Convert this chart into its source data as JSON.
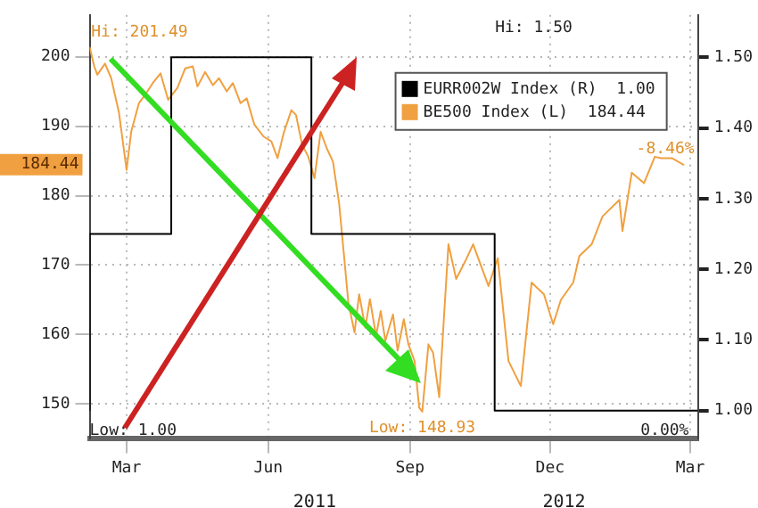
{
  "chart_data": {
    "type": "line",
    "series": [
      {
        "name": "EURR002W Index (R)  1.00",
        "color": "#000000",
        "type": "step",
        "axis": "y2",
        "x": [
          "2011-02-19",
          "2011-04-13",
          "2011-07-13",
          "2011-11-09",
          "2011-12-14",
          "2012-03-20"
        ],
        "values": [
          1.0,
          1.25,
          1.5,
          1.25,
          1.0,
          1.0
        ]
      },
      {
        "name": "BE500 Index (L)  184.44",
        "color": "#f0a040",
        "type": "line",
        "x": [
          "2011-02-19",
          "2011-02-22",
          "2011-02-24",
          "2011-03-01",
          "2011-03-05",
          "2011-03-10",
          "2011-03-15",
          "2011-03-18",
          "2011-03-23",
          "2011-03-27",
          "2011-04-01",
          "2011-04-06",
          "2011-04-11",
          "2011-04-17",
          "2011-04-22",
          "2011-04-27",
          "2011-04-30",
          "2011-05-05",
          "2011-05-10",
          "2011-05-14",
          "2011-05-19",
          "2011-05-23",
          "2011-05-28",
          "2011-06-01",
          "2011-06-06",
          "2011-06-12",
          "2011-06-17",
          "2011-06-21",
          "2011-06-25",
          "2011-06-30",
          "2011-07-03",
          "2011-07-07",
          "2011-07-11",
          "2011-07-15",
          "2011-07-19",
          "2011-07-23",
          "2011-07-27",
          "2011-07-31",
          "2011-08-03",
          "2011-08-06",
          "2011-08-10",
          "2011-08-13",
          "2011-08-17",
          "2011-08-20",
          "2011-08-24",
          "2011-08-27",
          "2011-08-30",
          "2011-09-04",
          "2011-09-07",
          "2011-09-11",
          "2011-09-14",
          "2011-09-18",
          "2011-09-21",
          "2011-09-23",
          "2011-09-27",
          "2011-09-30",
          "2011-10-04",
          "2011-10-07",
          "2011-10-10",
          "2011-10-15",
          "2011-10-21",
          "2011-10-26",
          "2011-11-05",
          "2011-11-11",
          "2011-11-18",
          "2011-11-26",
          "2011-12-03",
          "2011-12-11",
          "2011-12-17",
          "2011-12-22",
          "2011-12-30",
          "2012-01-03",
          "2012-01-11",
          "2012-01-18",
          "2012-01-29",
          "2012-01-31",
          "2012-02-06",
          "2012-02-14",
          "2012-02-21",
          "2012-02-25",
          "2012-03-03",
          "2012-03-11"
        ],
        "values": [
          201.4,
          198.6,
          197.4,
          199,
          196.9,
          192,
          183.7,
          189.2,
          193.3,
          194.5,
          196.2,
          197.6,
          193.8,
          195.5,
          198.3,
          198.6,
          195.7,
          197.8,
          195.9,
          196.9,
          195,
          196.2,
          193.3,
          194,
          190.2,
          188.5,
          187.8,
          185.4,
          189,
          192.3,
          191.6,
          187.3,
          185.6,
          182.5,
          189.2,
          186.8,
          184.9,
          178.9,
          171.8,
          164.6,
          160.3,
          165.8,
          161,
          165.1,
          159.8,
          163.4,
          159.1,
          162.9,
          157.7,
          162.2,
          158.6,
          156.2,
          149.5,
          148.9,
          158.6,
          157.4,
          151,
          162.2,
          173,
          168,
          170.6,
          173,
          167,
          171,
          156.2,
          152.6,
          167.5,
          165.8,
          161.5,
          165,
          167.5,
          171.3,
          173,
          177,
          179.4,
          174.9,
          183.3,
          181.8,
          185.6,
          185.4,
          185.4,
          184.4
        ]
      }
    ],
    "xlim": [
      "2011-02-19",
      "2012-03-20"
    ],
    "xticks": [
      {
        "value": "2011-03-15",
        "label": "Mar"
      },
      {
        "value": "2011-06-15",
        "label": "Jun"
      },
      {
        "value": "2011-09-15",
        "label": "Sep"
      },
      {
        "value": "2011-12-15",
        "label": "Dec"
      },
      {
        "value": "2012-03-15",
        "label": "Mar"
      }
    ],
    "ylim": [
      145,
      206
    ],
    "yticks": [
      150,
      160,
      170,
      180,
      190,
      200
    ],
    "y2lim": [
      0.96,
      1.56
    ],
    "y2ticks": [
      {
        "value": 1.0,
        "label": "1.00"
      },
      {
        "value": 1.1,
        "label": "1.10"
      },
      {
        "value": 1.2,
        "label": "1.20"
      },
      {
        "value": 1.3,
        "label": "1.30"
      },
      {
        "value": 1.4,
        "label": "1.40"
      },
      {
        "value": 1.5,
        "label": "1.50"
      }
    ],
    "grid": true,
    "legend": "top right",
    "marker": "none",
    "line_style": "solid",
    "annotations": [
      {
        "text": "Hi: 201.49",
        "x": "2011-02-20",
        "y": 201.49
      },
      {
        "text": "Low: 148.93",
        "x": "2011-09-23",
        "y": 148.9
      },
      {
        "text": "-8.46%",
        "x": "2012-03-11",
        "y": 184.4
      },
      "184.44",
      "Hi: 1.50",
      "Low: 1.00",
      "0.00%",
      "2011",
      "2012"
    ]
  }
}
